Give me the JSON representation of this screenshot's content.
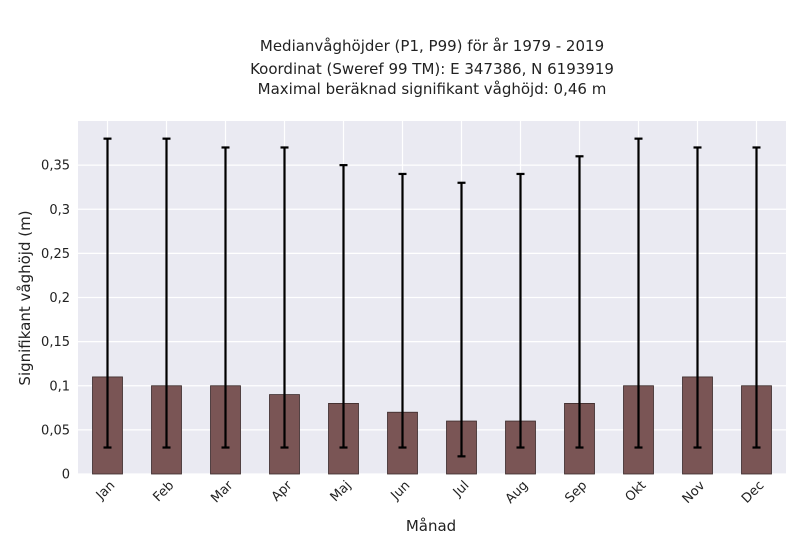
{
  "chart_data": {
    "type": "bar",
    "title": [
      "Medianvåghöjder (P1, P99) för år 1979 - 2019",
      "Koordinat (Sweref 99 TM): E 347386, N 6193919",
      "Maximal beräknad signifikant våghöjd: 0,46 m"
    ],
    "xlabel": "Månad",
    "ylabel": "Signifikant våghöjd (m)",
    "categories": [
      "Jan",
      "Feb",
      "Mar",
      "Apr",
      "Maj",
      "Jun",
      "Jul",
      "Aug",
      "Sep",
      "Okt",
      "Nov",
      "Dec"
    ],
    "values": [
      0.11,
      0.1,
      0.1,
      0.09,
      0.08,
      0.07,
      0.06,
      0.06,
      0.08,
      0.1,
      0.11,
      0.1
    ],
    "error_low": [
      0.03,
      0.03,
      0.03,
      0.03,
      0.03,
      0.03,
      0.02,
      0.03,
      0.03,
      0.03,
      0.03,
      0.03
    ],
    "error_high": [
      0.38,
      0.38,
      0.37,
      0.37,
      0.35,
      0.34,
      0.33,
      0.34,
      0.36,
      0.38,
      0.37,
      0.37
    ],
    "yticks": [
      "0",
      "0,05",
      "0,1",
      "0,15",
      "0,2",
      "0,25",
      "0,3",
      "0,35"
    ],
    "ylim": [
      0,
      0.4
    ],
    "grid": true,
    "colors": {
      "bar": "#7a5555",
      "bar_edge": "#3a2a2a",
      "plot_bg": "#eaeaf2",
      "grid": "#ffffff",
      "error": "#000000"
    }
  }
}
